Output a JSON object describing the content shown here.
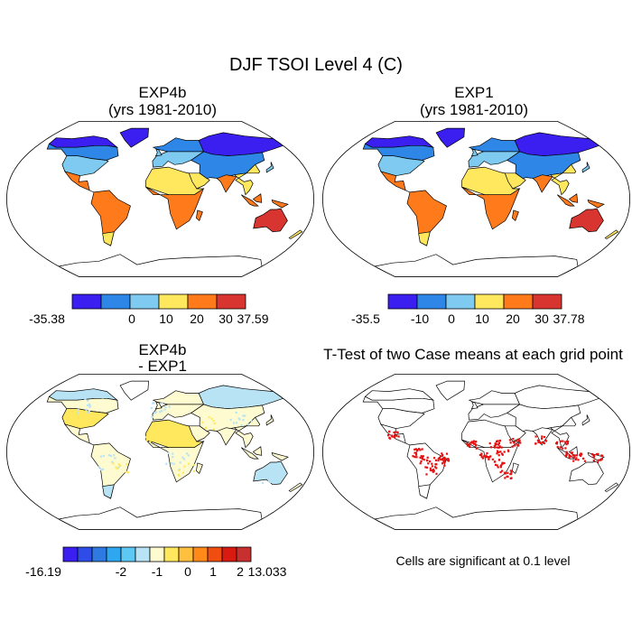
{
  "figure": {
    "title": "DJF TSOI Level 4 (C)",
    "significance_note": "Cells are significant at 0.1 level"
  },
  "panels": [
    {
      "id": "tl",
      "title_line1": "EXP4b",
      "title_line2": "(yrs 1981-2010)"
    },
    {
      "id": "tr",
      "title_line1": "EXP1",
      "title_line2": "(yrs 1981-2010)"
    },
    {
      "id": "bl",
      "title_line1": "EXP4b",
      "title_line2": "- EXP1"
    },
    {
      "id": "br",
      "title_line1": "T-Test of two Case means at each grid point"
    }
  ],
  "chart_data": [
    {
      "type": "heatmap",
      "panel": "tl",
      "title": "EXP4b (yrs 1981-2010)",
      "projection": "Robinson",
      "colorbar": {
        "colors": [
          "#3b1ff0",
          "#2e86e6",
          "#7ecaf0",
          "#ffe85e",
          "#ff7a1a",
          "#d93530"
        ],
        "tick_labels": [
          "-35.38",
          "0",
          "10",
          "20",
          "30",
          "37.59"
        ],
        "min": -35.38,
        "max": 37.59
      }
    },
    {
      "type": "heatmap",
      "panel": "tr",
      "title": "EXP1 (yrs 1981-2010)",
      "projection": "Robinson",
      "colorbar": {
        "colors": [
          "#3b1ff0",
          "#2e86e6",
          "#7ecaf0",
          "#ffe85e",
          "#ff7a1a",
          "#d93530"
        ],
        "tick_labels": [
          "-35.5",
          "-10",
          "0",
          "10",
          "20",
          "30",
          "37.78"
        ],
        "min": -35.5,
        "max": 37.78
      }
    },
    {
      "type": "heatmap",
      "panel": "bl",
      "title": "EXP4b - EXP1",
      "projection": "Robinson",
      "colorbar": {
        "colors": [
          "#3b1ff0",
          "#2e4de8",
          "#2e7ae0",
          "#2ea6f0",
          "#5ec8f5",
          "#b8e3f5",
          "#fffbd0",
          "#ffe85e",
          "#ffc040",
          "#ff8a1a",
          "#f04e10",
          "#d81a10",
          "#c83030"
        ],
        "tick_labels": [
          "-16.19",
          "-2",
          "-1",
          "0",
          "1",
          "2",
          "13.033"
        ],
        "min": -16.19,
        "max": 13.033
      }
    },
    {
      "type": "heatmap",
      "panel": "br",
      "title": "T-Test of two Case means at each grid point",
      "projection": "Robinson",
      "significance_level": 0.1
    }
  ]
}
